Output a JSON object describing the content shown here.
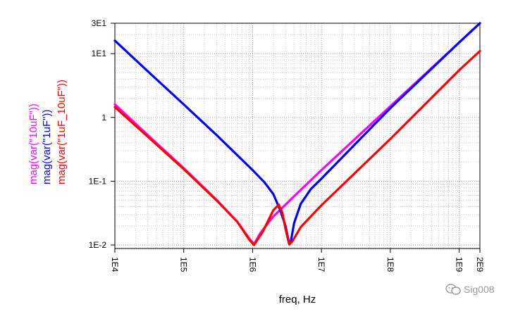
{
  "chart_data": {
    "type": "line",
    "xlabel": "freq, Hz",
    "x_scale": "log",
    "y_scale": "log",
    "xlim": [
      10000,
      2000000000
    ],
    "ylim": [
      0.008,
      30
    ],
    "grid": true,
    "x_ticks": [
      {
        "value": 10000,
        "label": "1E4"
      },
      {
        "value": 100000,
        "label": "1E5"
      },
      {
        "value": 1000000,
        "label": "1E6"
      },
      {
        "value": 10000000,
        "label": "1E7"
      },
      {
        "value": 100000000,
        "label": "1E8"
      },
      {
        "value": 1000000000,
        "label": "1E9"
      },
      {
        "value": 2000000000,
        "label": "2E9"
      }
    ],
    "y_ticks": [
      {
        "value": 30,
        "label": "3E1"
      },
      {
        "value": 10,
        "label": "1E1"
      },
      {
        "value": 1,
        "label": "1"
      },
      {
        "value": 0.1,
        "label": "1E-1"
      },
      {
        "value": 0.01,
        "label": "1E-2"
      }
    ],
    "series": [
      {
        "name": "mag(var(\"10uF\"))",
        "color": "#ff00ff",
        "points": [
          [
            10000,
            1.6
          ],
          [
            30000,
            0.53
          ],
          [
            100000,
            0.16
          ],
          [
            300000,
            0.051
          ],
          [
            600000,
            0.023
          ],
          [
            900000,
            0.0125
          ],
          [
            1050000,
            0.0103
          ],
          [
            1300000,
            0.0155
          ],
          [
            2000000,
            0.028
          ],
          [
            4000000,
            0.058
          ],
          [
            10000000,
            0.15
          ],
          [
            100000000,
            1.5
          ],
          [
            1000000000,
            15
          ],
          [
            2000000000,
            30
          ]
        ]
      },
      {
        "name": "mag(var(\"1uF\"))",
        "color": "#0000ff",
        "points": [
          [
            10000,
            16
          ],
          [
            30000,
            5.3
          ],
          [
            100000,
            1.6
          ],
          [
            300000,
            0.53
          ],
          [
            1000000,
            0.15
          ],
          [
            1500000,
            0.095
          ],
          [
            2000000,
            0.063
          ],
          [
            2500000,
            0.036
          ],
          [
            3000000,
            0.02
          ],
          [
            3400000,
            0.0105
          ],
          [
            3600000,
            0.0115
          ],
          [
            4000000,
            0.022
          ],
          [
            5000000,
            0.044
          ],
          [
            7000000,
            0.075
          ],
          [
            10000000,
            0.11
          ],
          [
            100000000,
            1.4
          ],
          [
            1000000000,
            15
          ],
          [
            2000000000,
            30
          ]
        ]
      },
      {
        "name": "mag(var(\"1uF_10uF\"))",
        "color": "#ff0000",
        "points": [
          [
            10000,
            1.45
          ],
          [
            30000,
            0.5
          ],
          [
            100000,
            0.155
          ],
          [
            300000,
            0.05
          ],
          [
            600000,
            0.023
          ],
          [
            900000,
            0.012
          ],
          [
            1050000,
            0.01
          ],
          [
            1400000,
            0.016
          ],
          [
            2000000,
            0.035
          ],
          [
            2400000,
            0.043
          ],
          [
            2700000,
            0.032
          ],
          [
            3000000,
            0.018
          ],
          [
            3400000,
            0.0102
          ],
          [
            3800000,
            0.0115
          ],
          [
            5000000,
            0.019
          ],
          [
            7000000,
            0.028
          ],
          [
            10000000,
            0.042
          ],
          [
            100000000,
            0.46
          ],
          [
            1000000000,
            5.5
          ],
          [
            2000000000,
            11
          ]
        ]
      }
    ]
  },
  "watermark": {
    "text": "Sig008"
  }
}
